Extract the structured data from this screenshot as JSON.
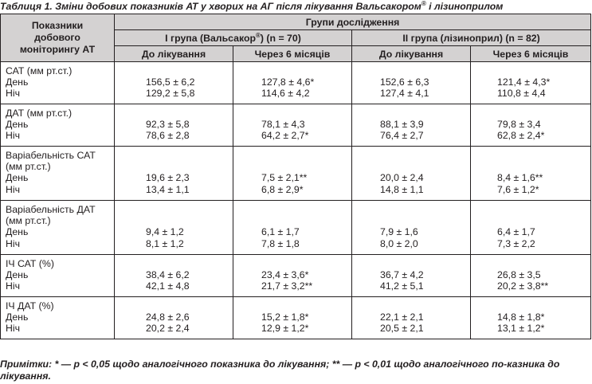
{
  "caption": {
    "main": "Таблиця 1. Зміни добових показників АТ у хворих на АГ після лікування Вальсакором",
    "mark": "®",
    "tail": " і лізиноприлом"
  },
  "header": {
    "rowhead_lines": [
      "Показники",
      "добового",
      "моніторингу АТ"
    ],
    "groups_title": "Групи дослідження",
    "group1": {
      "pre": "I група (Вальсакор",
      "mark": "®",
      "post": ") (n = 70)"
    },
    "group2": "II група (лізиноприл) (n = 82)",
    "before": "До лікування",
    "after": "Через 6 місяців"
  },
  "rows": [
    {
      "labels": [
        "САТ (мм рт.ст.)",
        "День",
        "Ніч"
      ],
      "pad": 1,
      "g1_before": [
        "156,5 ± 6,2",
        "129,2 ± 5,8"
      ],
      "g1_after": [
        "127,8 ± 4,6*",
        "114,6 ± 4,2"
      ],
      "g2_before": [
        "152,6 ± 6,3",
        "127,4 ± 4,1"
      ],
      "g2_after": [
        "121,4 ± 4,3*",
        "110,8 ± 4,4"
      ]
    },
    {
      "labels": [
        "ДАТ (мм рт.ст.)",
        "День",
        "Ніч"
      ],
      "pad": 1,
      "g1_before": [
        "92,3 ± 5,8",
        "78,6 ± 2,8"
      ],
      "g1_after": [
        "78,1 ± 4,3",
        "64,2 ± 2,7*"
      ],
      "g2_before": [
        "88,1 ± 3,9",
        "76,4 ± 2,7"
      ],
      "g2_after": [
        "79,8 ± 3,4",
        "62,8 ± 2,4*"
      ]
    },
    {
      "labels": [
        "Варіабельність САТ",
        "(мм рт.ст.)",
        "День",
        "Ніч"
      ],
      "pad": 2,
      "g1_before": [
        "19,6 ± 2,3",
        "13,4 ± 1,1"
      ],
      "g1_after": [
        "7,5 ± 2,1**",
        "6,8 ± 2,9*"
      ],
      "g2_before": [
        "20,0 ± 2,4",
        "14,8 ± 1,1"
      ],
      "g2_after": [
        "8,4 ± 1,6**",
        "7,6 ± 1,2*"
      ]
    },
    {
      "labels": [
        "Варіабельність ДАТ",
        "(мм рт.ст.)",
        "День",
        "Ніч"
      ],
      "pad": 2,
      "g1_before": [
        "9,4 ± 1,2",
        "8,1 ± 1,2"
      ],
      "g1_after": [
        "6,1 ± 1,7",
        "7,8 ± 1,8"
      ],
      "g2_before": [
        "7,9 ± 1,6",
        "8,0 ± 2,0"
      ],
      "g2_after": [
        "6,4 ± 1,7",
        "7,3 ± 2,2"
      ]
    },
    {
      "labels": [
        "ІЧ САТ (%)",
        "День",
        "Ніч"
      ],
      "pad": 1,
      "g1_before": [
        "38,4 ± 6,2",
        "42,1 ± 4,8"
      ],
      "g1_after": [
        "23,4 ± 3,6*",
        "21,7 ± 3,2**"
      ],
      "g2_before": [
        "36,7 ± 4,2",
        "41,2 ± 5,1"
      ],
      "g2_after": [
        "26,8 ± 3,5",
        "20,2 ± 3,8**"
      ]
    },
    {
      "labels": [
        "ІЧ ДАТ (%)",
        "День",
        "Ніч"
      ],
      "pad": 1,
      "g1_before": [
        "24,8 ± 2,6",
        "20,2 ± 2,4"
      ],
      "g1_after": [
        "15,2 ± 1,8*",
        "12,9 ± 1,2*"
      ],
      "g2_before": [
        "22,1 ± 2,1",
        "20,5 ± 2,1"
      ],
      "g2_after": [
        "14,8 ± 1,8*",
        "13,1 ± 1,2*"
      ]
    }
  ],
  "note": "Примітки: * — p < 0,05 щодо аналогічного показника до лікування; ** — p < 0,01 щодо аналогічного по-казника до лікування."
}
